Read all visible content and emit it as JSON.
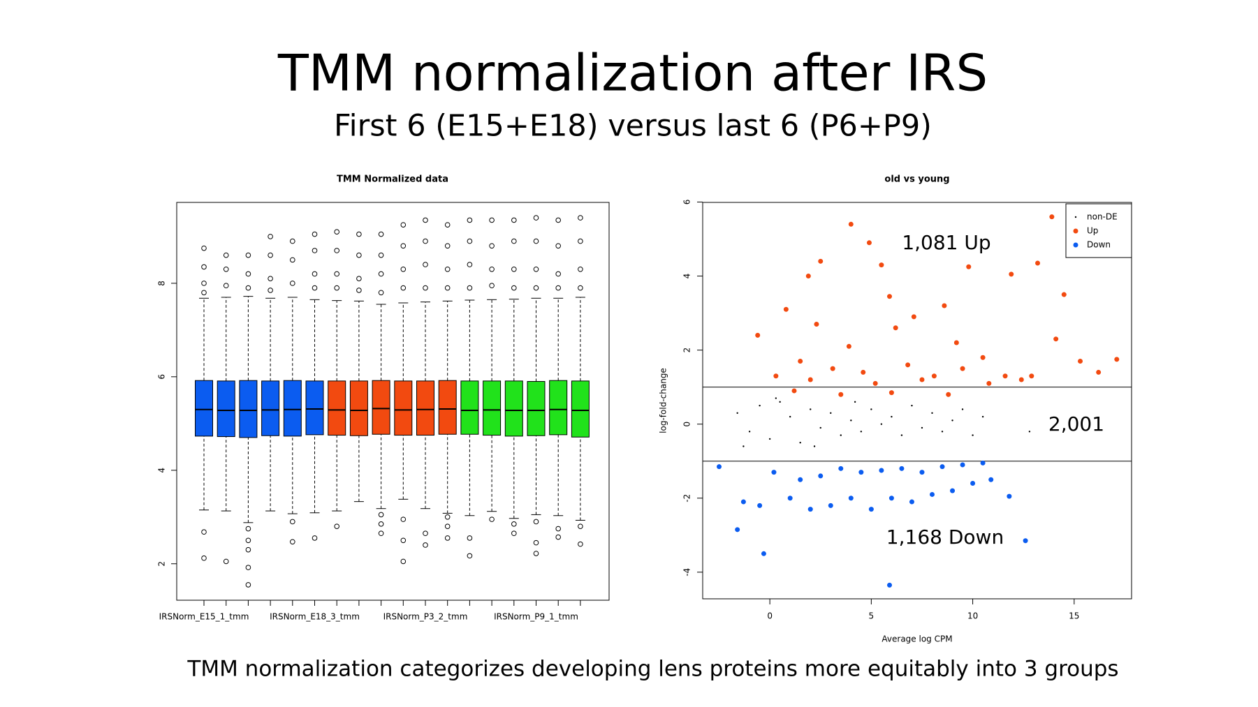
{
  "header": {
    "title": "TMM normalization after IRS",
    "subtitle": "First 6 (E15+E18) versus last 6 (P6+P9)"
  },
  "footer": "TMM normalization categorizes developing lens proteins more equitably into 3 groups",
  "chart_data": [
    {
      "type": "box",
      "title": "TMM Normalized data",
      "categories": [
        "IRSNorm_E15_1_tmm",
        null,
        null,
        null,
        null,
        "IRSNorm_E18_3_tmm",
        null,
        null,
        null,
        null,
        "IRSNorm_P3_2_tmm",
        null,
        null,
        null,
        null,
        "IRSNorm_P9_1_tmm",
        null,
        null
      ],
      "ylim": [
        1.22,
        9.73
      ],
      "yticks": [
        2,
        4,
        6,
        8
      ],
      "boxes": [
        {
          "color": "#0b5cf0",
          "low": 3.15,
          "q1": 4.73,
          "median": 5.3,
          "q3": 5.92,
          "high": 7.68,
          "outliers": [
            8.75,
            8.35,
            8.0,
            7.8,
            2.68,
            2.12
          ]
        },
        {
          "color": "#0b5cf0",
          "low": 3.13,
          "q1": 4.72,
          "median": 5.28,
          "q3": 5.91,
          "high": 7.7,
          "outliers": [
            8.6,
            8.3,
            7.95,
            2.05
          ]
        },
        {
          "color": "#0b5cf0",
          "low": 2.88,
          "q1": 4.7,
          "median": 5.28,
          "q3": 5.92,
          "high": 7.72,
          "outliers": [
            8.6,
            8.2,
            7.9,
            2.75,
            2.5,
            2.3,
            1.92,
            1.55
          ]
        },
        {
          "color": "#0b5cf0",
          "low": 3.13,
          "q1": 4.74,
          "median": 5.29,
          "q3": 5.91,
          "high": 7.68,
          "outliers": [
            9.0,
            8.6,
            8.1,
            7.85
          ]
        },
        {
          "color": "#0b5cf0",
          "low": 3.07,
          "q1": 4.73,
          "median": 5.3,
          "q3": 5.92,
          "high": 7.7,
          "outliers": [
            8.9,
            8.5,
            8.0,
            2.9,
            2.47
          ]
        },
        {
          "color": "#0b5cf0",
          "low": 3.09,
          "q1": 4.76,
          "median": 5.31,
          "q3": 5.91,
          "high": 7.65,
          "outliers": [
            9.05,
            8.7,
            8.2,
            7.9,
            2.55
          ]
        },
        {
          "color": "#f24a10",
          "low": 3.13,
          "q1": 4.75,
          "median": 5.29,
          "q3": 5.91,
          "high": 7.63,
          "outliers": [
            9.1,
            8.7,
            8.2,
            7.9,
            2.8
          ]
        },
        {
          "color": "#f24a10",
          "low": 3.33,
          "q1": 4.74,
          "median": 5.28,
          "q3": 5.91,
          "high": 7.62,
          "outliers": [
            9.05,
            8.6,
            8.1,
            7.85
          ]
        },
        {
          "color": "#f24a10",
          "low": 3.18,
          "q1": 4.77,
          "median": 5.32,
          "q3": 5.92,
          "high": 7.55,
          "outliers": [
            9.05,
            8.6,
            8.2,
            7.8,
            3.05,
            2.85,
            2.65
          ]
        },
        {
          "color": "#f24a10",
          "low": 3.38,
          "q1": 4.75,
          "median": 5.29,
          "q3": 5.91,
          "high": 7.58,
          "outliers": [
            9.25,
            8.8,
            8.3,
            7.9,
            2.95,
            2.5,
            2.05
          ]
        },
        {
          "color": "#f24a10",
          "low": 3.18,
          "q1": 4.75,
          "median": 5.3,
          "q3": 5.91,
          "high": 7.6,
          "outliers": [
            9.35,
            8.9,
            8.4,
            7.9,
            2.65,
            2.4
          ]
        },
        {
          "color": "#f24a10",
          "low": 3.08,
          "q1": 4.77,
          "median": 5.31,
          "q3": 5.92,
          "high": 7.62,
          "outliers": [
            9.25,
            8.8,
            8.3,
            7.9,
            3.0,
            2.8,
            2.55
          ]
        },
        {
          "color": "#21e21b",
          "low": 3.03,
          "q1": 4.77,
          "median": 5.28,
          "q3": 5.91,
          "high": 7.64,
          "outliers": [
            9.35,
            8.9,
            8.4,
            7.9,
            2.55,
            2.17
          ]
        },
        {
          "color": "#21e21b",
          "low": 3.12,
          "q1": 4.75,
          "median": 5.29,
          "q3": 5.91,
          "high": 7.65,
          "outliers": [
            9.35,
            8.8,
            8.3,
            7.95,
            2.95
          ]
        },
        {
          "color": "#21e21b",
          "low": 2.97,
          "q1": 4.73,
          "median": 5.28,
          "q3": 5.91,
          "high": 7.66,
          "outliers": [
            9.35,
            8.9,
            8.3,
            7.9,
            2.85,
            2.65
          ]
        },
        {
          "color": "#21e21b",
          "low": 3.05,
          "q1": 4.74,
          "median": 5.28,
          "q3": 5.9,
          "high": 7.68,
          "outliers": [
            9.4,
            8.9,
            8.3,
            7.9,
            2.9,
            2.45,
            2.22
          ]
        },
        {
          "color": "#21e21b",
          "low": 3.03,
          "q1": 4.76,
          "median": 5.3,
          "q3": 5.92,
          "high": 7.68,
          "outliers": [
            9.35,
            8.8,
            8.2,
            7.9,
            2.75,
            2.57
          ]
        },
        {
          "color": "#21e21b",
          "low": 2.93,
          "q1": 4.71,
          "median": 5.28,
          "q3": 5.91,
          "high": 7.7,
          "outliers": [
            9.4,
            8.9,
            8.3,
            7.9,
            2.8,
            2.42
          ]
        }
      ]
    },
    {
      "type": "scatter",
      "title": "old vs young",
      "xlabel": "Average log CPM",
      "ylabel": "log-fold-change",
      "xlim": [
        -3.31,
        17.83
      ],
      "ylim": [
        -4.72,
        5.99
      ],
      "xticks": [
        0,
        5,
        10,
        15
      ],
      "yticks": [
        -4,
        -2,
        0,
        2,
        4,
        6
      ],
      "hlines": [
        1,
        -1
      ],
      "legend": "topright",
      "annotations": [
        "1,081 Up",
        "2,001",
        "1,168 Down"
      ],
      "series": [
        {
          "name": "non-DE",
          "color": "#000000",
          "x": [
            -1.6,
            -1.0,
            -0.5,
            0,
            0.5,
            1,
            1.5,
            2,
            2.5,
            3,
            3.5,
            4,
            4.5,
            5,
            5.5,
            6,
            6.5,
            7,
            7.5,
            8,
            8.5,
            9,
            9.5,
            10,
            10.5,
            12.8,
            -1.3,
            0.3,
            2.2,
            4.2
          ],
          "values": [
            0.3,
            -0.2,
            0.5,
            -0.4,
            0.6,
            0.2,
            -0.5,
            0.4,
            -0.1,
            0.3,
            -0.3,
            0.1,
            -0.2,
            0.4,
            0,
            0.2,
            -0.3,
            0.5,
            -0.1,
            0.3,
            -0.2,
            0.1,
            0.4,
            -0.3,
            0.2,
            -0.2,
            -0.6,
            0.7,
            -0.6,
            0.6
          ]
        },
        {
          "name": "Up",
          "color": "#f24a10",
          "x": [
            4.0,
            4.9,
            2.5,
            1.9,
            5.5,
            13.9,
            13.2,
            14.5,
            11.9,
            9.8,
            5.9,
            8.6,
            -0.6,
            0.8,
            2.3,
            3.9,
            6.2,
            7.1,
            9.2,
            10.5,
            12.4,
            14.1,
            15.3,
            16.2,
            17.1,
            1.5,
            3.1,
            4.6,
            6.8,
            8.1,
            9.5,
            0.3,
            2.0,
            5.2,
            7.5,
            10.8,
            11.6,
            12.9,
            1.2,
            3.5,
            6.0,
            8.8
          ],
          "values": [
            5.4,
            4.9,
            4.4,
            4.0,
            4.3,
            5.6,
            4.35,
            3.5,
            4.05,
            4.25,
            3.45,
            3.2,
            2.4,
            3.1,
            2.7,
            2.1,
            2.6,
            2.9,
            2.2,
            1.8,
            1.2,
            2.3,
            1.7,
            1.4,
            1.75,
            1.7,
            1.5,
            1.4,
            1.6,
            1.3,
            1.5,
            1.3,
            1.2,
            1.1,
            1.2,
            1.1,
            1.3,
            1.3,
            0.9,
            0.8,
            0.85,
            0.8
          ]
        },
        {
          "name": "Down",
          "color": "#0b5cf0",
          "x": [
            5.9,
            -0.3,
            12.6,
            -1.6,
            -1.3,
            -2.5,
            -0.5,
            1.0,
            2.0,
            3.0,
            4.0,
            5.0,
            6.0,
            7.0,
            8.0,
            9.0,
            10.0,
            10.9,
            11.8,
            0.2,
            1.5,
            2.5,
            3.5,
            4.5,
            5.5,
            6.5,
            7.5,
            8.5,
            9.5,
            10.5
          ],
          "values": [
            -4.35,
            -3.5,
            -3.15,
            -2.85,
            -2.1,
            -1.15,
            -2.2,
            -2.0,
            -2.3,
            -2.2,
            -2.0,
            -2.3,
            -2.0,
            -2.1,
            -1.9,
            -1.8,
            -1.6,
            -1.5,
            -1.95,
            -1.3,
            -1.5,
            -1.4,
            -1.2,
            -1.3,
            -1.25,
            -1.2,
            -1.3,
            -1.15,
            -1.1,
            -1.05
          ]
        }
      ]
    }
  ]
}
